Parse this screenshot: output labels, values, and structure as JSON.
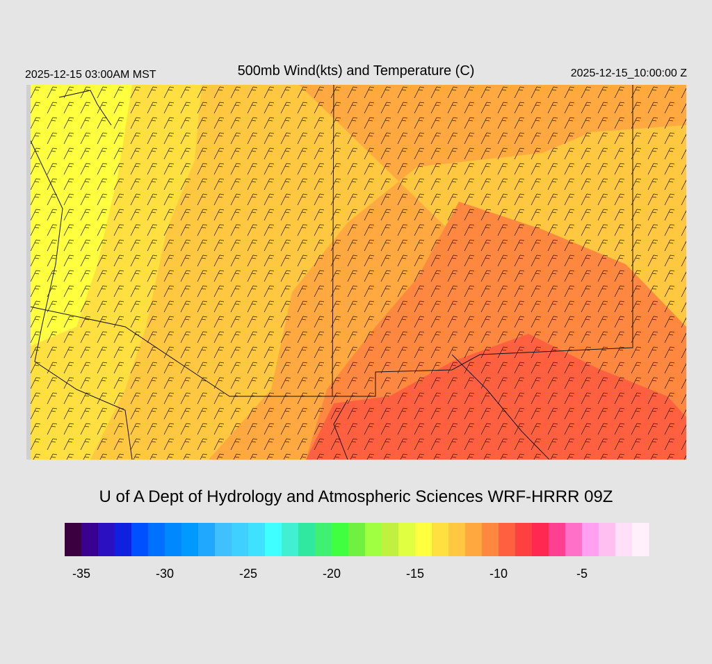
{
  "header": {
    "left": "2025-12-15 03:00AM MST",
    "title": "500mb Wind(kts) and Temperature (C)",
    "right": "2025-12-15_10:00:00 Z"
  },
  "credit": "U of A Dept of Hydrology and Atmospheric Sciences WRF-HRRR 09Z",
  "colorbar": {
    "range": [
      -36,
      -1
    ],
    "colors": [
      "#3a0040",
      "#3a0090",
      "#2a10c0",
      "#1020e0",
      "#0050ff",
      "#0070ff",
      "#0088ff",
      "#0099ff",
      "#20a8ff",
      "#40c0ff",
      "#40d0ff",
      "#40e0ff",
      "#40ffff",
      "#40f0d0",
      "#30e8a0",
      "#40f070",
      "#40ff40",
      "#70f040",
      "#a0ff40",
      "#c0f040",
      "#e0ff40",
      "#ffff40",
      "#ffe040",
      "#ffc840",
      "#ffa840",
      "#ff8840",
      "#ff6040",
      "#ff4040",
      "#ff2850",
      "#ff4090",
      "#ff70c8",
      "#ffa0f0",
      "#ffc0f0",
      "#ffe0f8",
      "#fff0fc"
    ],
    "ticks": [
      -35,
      -30,
      -25,
      -20,
      -15,
      -10,
      -5
    ]
  }
}
